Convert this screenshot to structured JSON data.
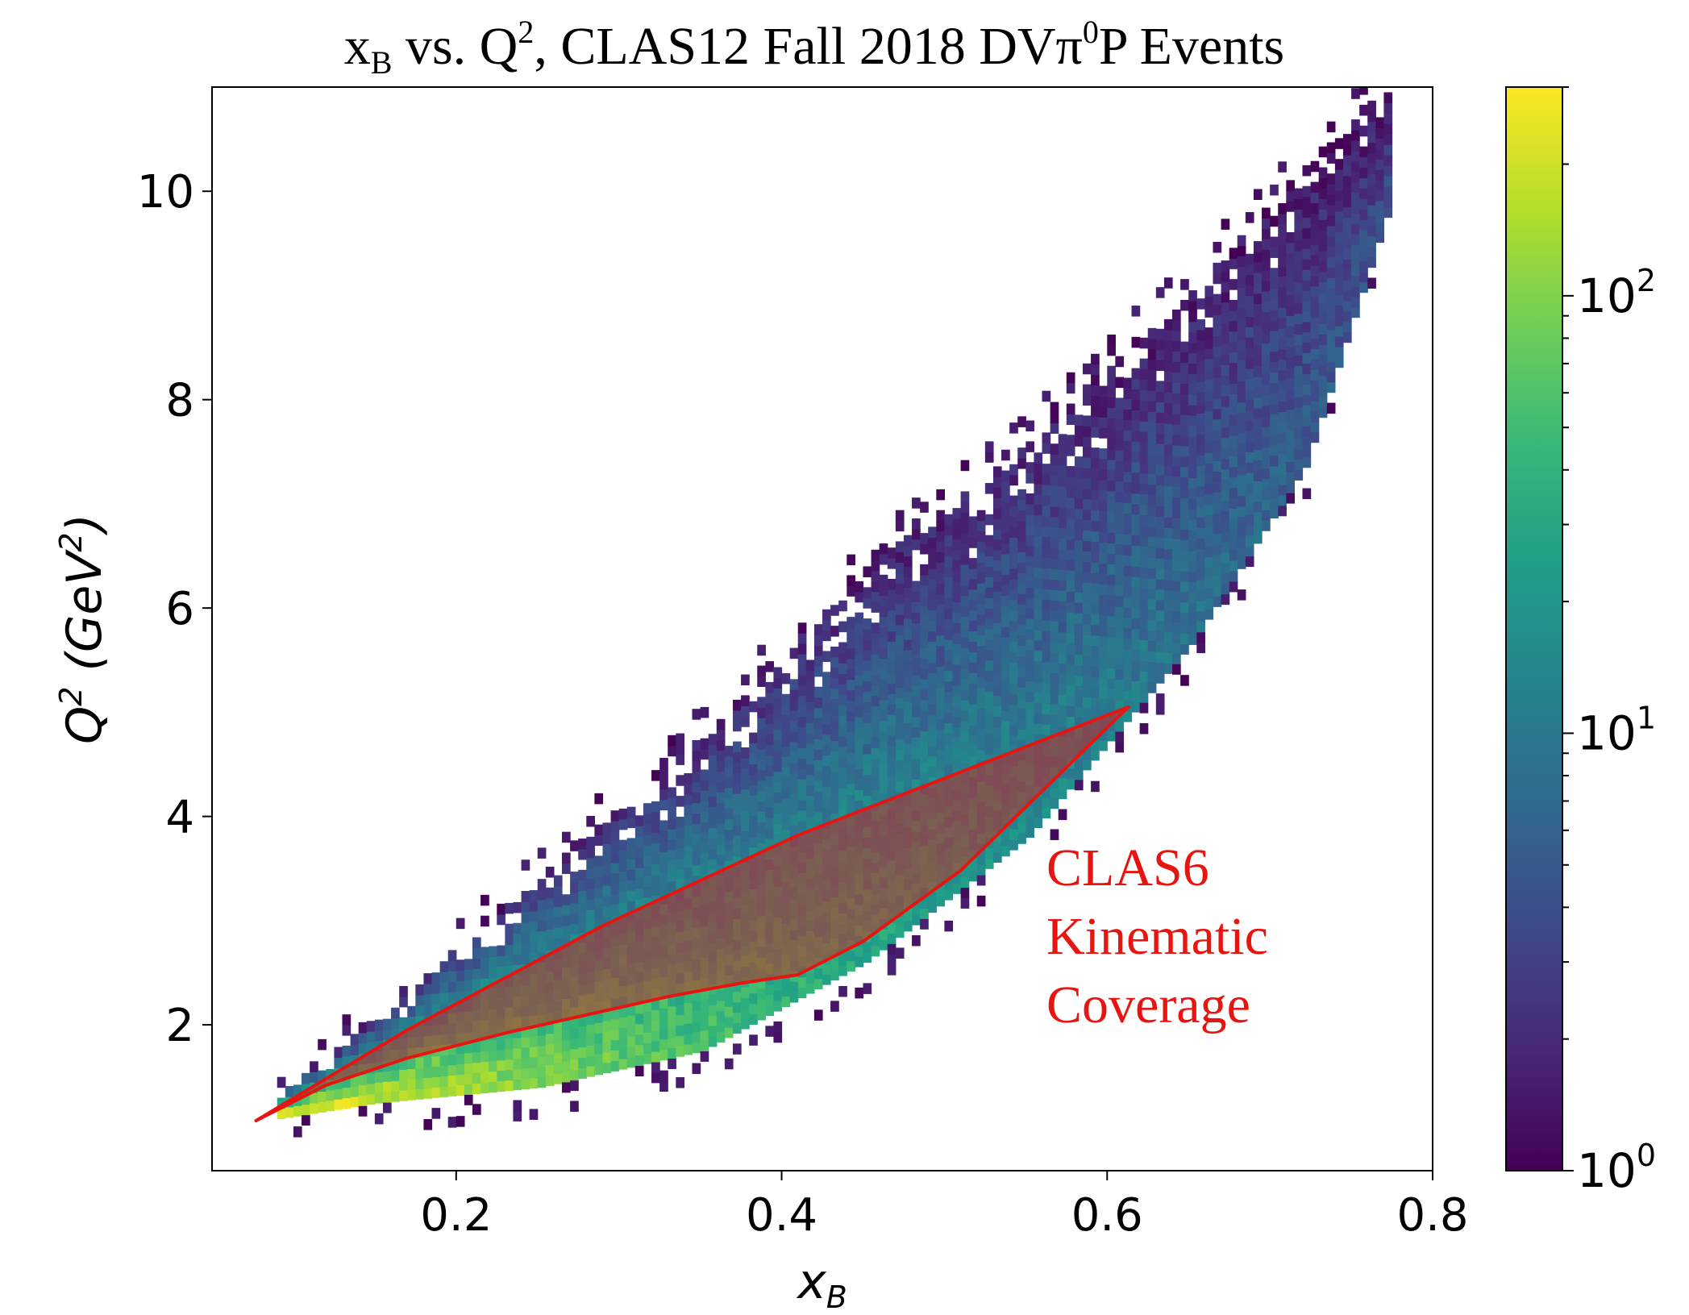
{
  "chart_data": {
    "type": "heatmap",
    "title": {
      "x_symbol": "x",
      "x_subscript": "B",
      "vs": " vs. Q",
      "q_superscript": "2",
      "middle": ", CLAS12 Fall 2018 DVπ",
      "pi_superscript": "0",
      "end": "P Events"
    },
    "xlabel": {
      "symbol": "x",
      "subscript": "B"
    },
    "ylabel": {
      "prefix": "Q",
      "superscript": "2",
      "open": " (GeV",
      "unit_superscript": "2",
      "close": ")"
    },
    "xlim": [
      0.05,
      0.8
    ],
    "ylim": [
      0.6,
      11.0
    ],
    "x_ticks": [
      {
        "value": 0.2,
        "label": "0.2"
      },
      {
        "value": 0.4,
        "label": "0.4"
      },
      {
        "value": 0.6,
        "label": "0.6"
      },
      {
        "value": 0.8,
        "label": "0.8"
      }
    ],
    "y_ticks": [
      {
        "value": 2,
        "label": "2"
      },
      {
        "value": 4,
        "label": "4"
      },
      {
        "value": 6,
        "label": "6"
      },
      {
        "value": 8,
        "label": "8"
      },
      {
        "value": 10,
        "label": "10"
      }
    ],
    "colorbar": {
      "scale": "log",
      "colormap": "viridis",
      "range": [
        1,
        300
      ],
      "ticks": [
        {
          "value": 1,
          "base": "10",
          "exponent": "0"
        },
        {
          "value": 10,
          "base": "10",
          "exponent": "1"
        },
        {
          "value": 100,
          "base": "10",
          "exponent": "2"
        }
      ],
      "colormap_stops": [
        "#440154",
        "#482878",
        "#3e4989",
        "#31688e",
        "#26828e",
        "#1f9e89",
        "#35b779",
        "#6ece58",
        "#b5de2b",
        "#fde725"
      ]
    },
    "binning": {
      "x_bin_width": 0.005,
      "y_bin_width": 0.1
    },
    "density_model": {
      "lower_edge_q2": [
        [
          0.09,
          1.05
        ],
        [
          0.15,
          1.2
        ],
        [
          0.25,
          1.35
        ],
        [
          0.35,
          1.7
        ],
        [
          0.45,
          2.55
        ],
        [
          0.55,
          3.75
        ],
        [
          0.65,
          5.6
        ],
        [
          0.72,
          7.3
        ],
        [
          0.77,
          9.7
        ]
      ],
      "upper_edge_q2": [
        [
          0.09,
          1.3
        ],
        [
          0.15,
          2.0
        ],
        [
          0.25,
          3.4
        ],
        [
          0.35,
          4.7
        ],
        [
          0.45,
          6.3
        ],
        [
          0.55,
          7.6
        ],
        [
          0.65,
          9.0
        ],
        [
          0.72,
          10.2
        ],
        [
          0.77,
          10.9
        ]
      ],
      "peak_counts": 280
    },
    "overlay": {
      "name_lines": [
        "CLAS6",
        "Kinematic",
        "Coverage"
      ],
      "color": "#e8140f",
      "fill_color": "#e8140f",
      "fill_opacity": 0.45,
      "polygon": [
        [
          0.077,
          1.08
        ],
        [
          0.17,
          1.95
        ],
        [
          0.29,
          2.95
        ],
        [
          0.41,
          3.82
        ],
        [
          0.613,
          5.05
        ],
        [
          0.51,
          3.48
        ],
        [
          0.45,
          2.8
        ],
        [
          0.41,
          2.48
        ],
        [
          0.375,
          2.4
        ],
        [
          0.33,
          2.27
        ],
        [
          0.23,
          1.92
        ],
        [
          0.17,
          1.68
        ],
        [
          0.12,
          1.42
        ],
        [
          0.077,
          1.08
        ]
      ]
    }
  }
}
